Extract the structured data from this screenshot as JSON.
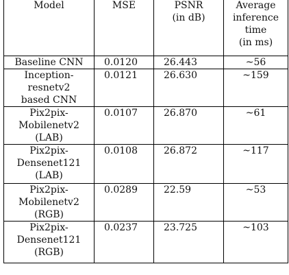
{
  "table": {
    "headers": {
      "model": [
        "Model"
      ],
      "mse": [
        "MSE"
      ],
      "psnr": [
        "PSNR",
        "(in dB)"
      ],
      "time": [
        "Average",
        "inference",
        "time",
        "(in ms)"
      ]
    },
    "rows": [
      {
        "model": [
          "Baseline CNN"
        ],
        "mse": "0.0120",
        "psnr": "26.443",
        "time": "~56"
      },
      {
        "model": [
          "Inception-",
          "resnetv2",
          "based CNN"
        ],
        "mse": "0.0121",
        "psnr": "26.630",
        "time": "~159"
      },
      {
        "model": [
          "Pix2pix-",
          "Mobilenetv2",
          "(LAB)"
        ],
        "mse": "0.0107",
        "psnr": "26.870",
        "time": "~61"
      },
      {
        "model": [
          "Pix2pix-",
          "Densenet121",
          "(LAB)"
        ],
        "mse": "0.0108",
        "psnr": "26.872",
        "time": "~117"
      },
      {
        "model": [
          "Pix2pix-",
          "Mobilenetv2",
          "(RGB)"
        ],
        "mse": "0.0289",
        "psnr": "22.59",
        "time": "~53"
      },
      {
        "model": [
          "Pix2pix-",
          "Densenet121",
          "(RGB)"
        ],
        "mse": "0.0237",
        "psnr": "23.725",
        "time": "~103"
      }
    ]
  }
}
